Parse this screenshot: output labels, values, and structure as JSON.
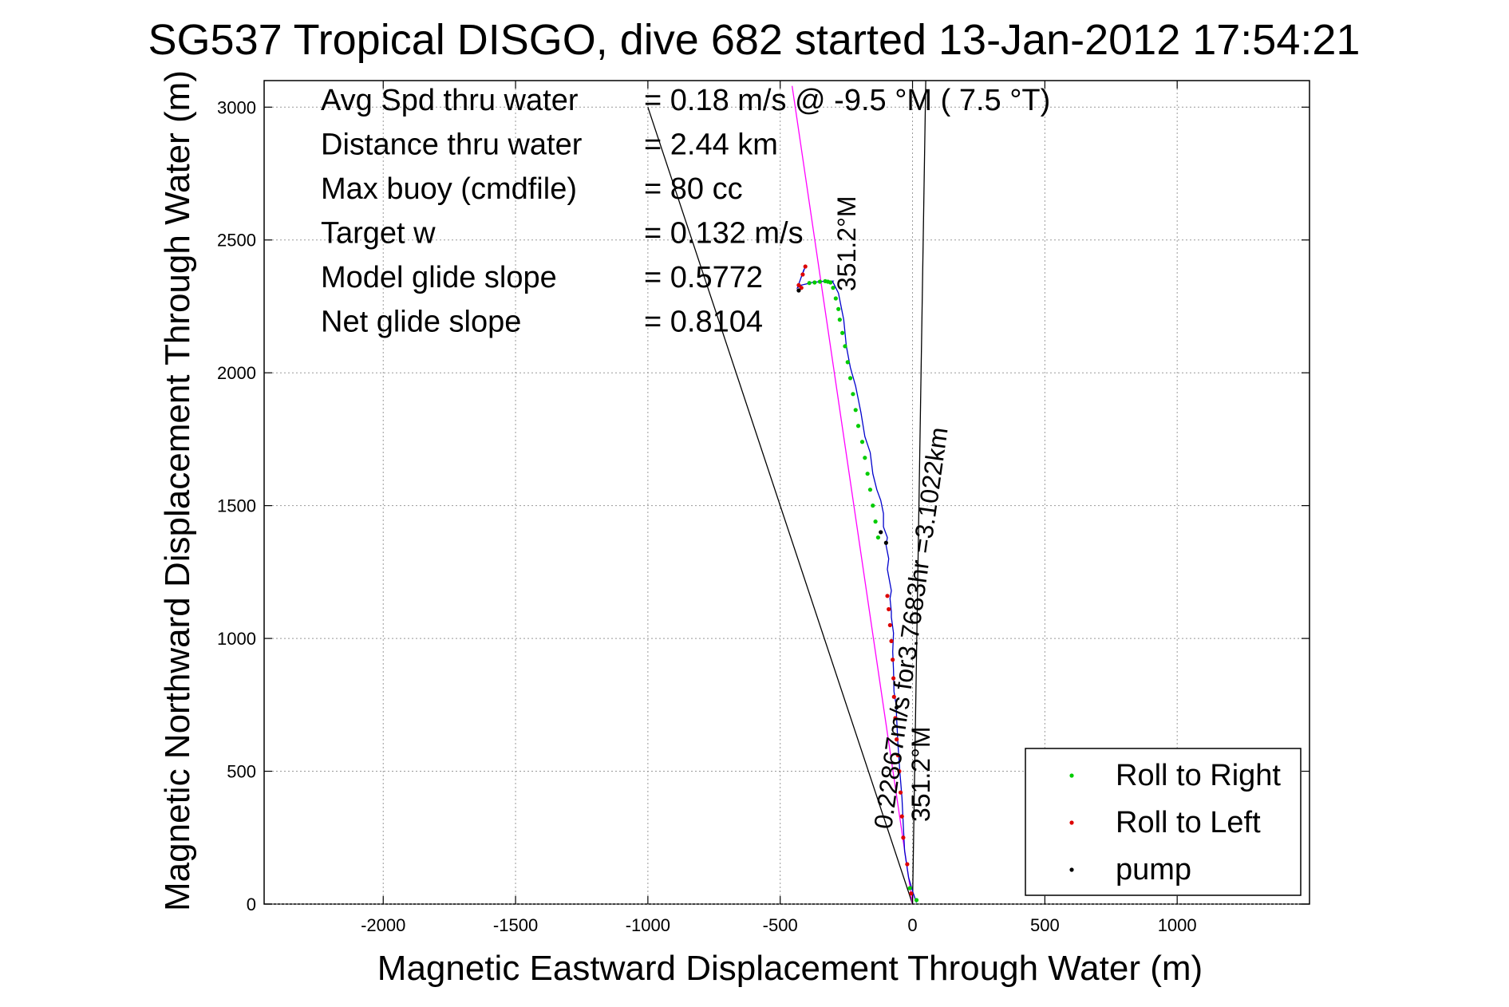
{
  "chart_data": {
    "type": "scatter",
    "title": "SG537 Tropical DISGO, dive 682 started 13-Jan-2012 17:54:21",
    "xlabel": "Magnetic Eastward Displacement Through Water (m)",
    "ylabel": "Magnetic Northward Displacement Through Water (m)",
    "xlim": [
      -2450,
      1500
    ],
    "ylim": [
      0,
      3100
    ],
    "grid": true,
    "x_ticks": [
      -2000,
      -1500,
      -1000,
      -500,
      0,
      500,
      1000
    ],
    "y_ticks": [
      0,
      500,
      1000,
      1500,
      2000,
      2500,
      3000
    ],
    "x_tick_labels": [
      "-2000",
      "-1500",
      "-1000",
      "-500",
      "0",
      "500",
      "1000"
    ],
    "y_tick_labels": [
      "0",
      "500",
      "1000",
      "1500",
      "2000",
      "2500",
      "3000"
    ],
    "stats": [
      {
        "label": "Avg Spd thru water",
        "value": "=  0.18 m/s @  -9.5 °M (  7.5 °T)"
      },
      {
        "label": "Distance thru water",
        "value": "=  2.44 km"
      },
      {
        "label": "Max buoy (cmdfile)",
        "value": "= 80 cc"
      },
      {
        "label": "Target w",
        "value": "= 0.132 m/s"
      },
      {
        "label": "Model glide slope",
        "value": "= 0.5772"
      },
      {
        "label": "Net glide slope",
        "value": "= 0.8104"
      }
    ],
    "annotations": {
      "heading_top": "351.2°M",
      "heading_bottom": "351.2°M",
      "speed_note": "0.22867m/s for3.7683hr =3.1022km"
    },
    "reference_lines": [
      {
        "name": "glide-slope-line-left",
        "color": "#000000",
        "x": [
          0,
          -1000
        ],
        "y": [
          0,
          3000
        ]
      },
      {
        "name": "glide-slope-line-right",
        "color": "#000000",
        "x": [
          0,
          50
        ],
        "y": [
          0,
          3100
        ]
      },
      {
        "name": "heading-line",
        "color": "#ff00ff",
        "x": [
          0,
          -455
        ],
        "y": [
          0,
          3080
        ]
      }
    ],
    "track": {
      "color": "#0000cc",
      "x": [
        15,
        10,
        0,
        -15,
        -30,
        -35,
        -40,
        -48,
        -55,
        -60,
        -62,
        -70,
        -72,
        -75,
        -72,
        -80,
        -80,
        -85,
        -80,
        -95,
        -90,
        -100,
        -95,
        -110,
        -110,
        -120,
        -135,
        -150,
        -160,
        -180,
        -195,
        -215,
        -235,
        -250,
        -260,
        -270,
        -280,
        -290,
        -300,
        -305,
        -300,
        -330,
        -380,
        -400,
        -420,
        -435,
        -410,
        -420,
        -405
      ],
      "y": [
        5,
        20,
        50,
        100,
        200,
        300,
        400,
        500,
        600,
        700,
        750,
        800,
        880,
        950,
        1020,
        1080,
        1100,
        1150,
        1180,
        1260,
        1300,
        1350,
        1380,
        1420,
        1470,
        1520,
        1560,
        1620,
        1700,
        1760,
        1850,
        1950,
        2020,
        2100,
        2200,
        2250,
        2300,
        2320,
        2340,
        2340,
        2345,
        2345,
        2340,
        2335,
        2330,
        2320,
        2390,
        2360,
        2400
      ]
    },
    "series": [
      {
        "name": "Roll to Right",
        "color": "#00cc00",
        "x": [
          15,
          -10,
          -130,
          -140,
          -150,
          -160,
          -170,
          -180,
          -190,
          -205,
          -215,
          -225,
          -235,
          -245,
          -255,
          -265,
          -275,
          -280,
          -290,
          -300,
          -310,
          -320,
          -330,
          -350,
          -370,
          -390
        ],
        "y": [
          15,
          60,
          1380,
          1440,
          1500,
          1560,
          1620,
          1680,
          1740,
          1800,
          1860,
          1920,
          1980,
          2040,
          2100,
          2150,
          2200,
          2240,
          2280,
          2320,
          2340,
          2343,
          2345,
          2343,
          2340,
          2338
        ]
      },
      {
        "name": "Roll to Left",
        "color": "#dd0000",
        "x": [
          -5,
          -20,
          -35,
          -40,
          -45,
          -50,
          -55,
          -60,
          -65,
          -70,
          -72,
          -75,
          -80,
          -85,
          -90,
          -95,
          -420,
          -430,
          -415,
          -405
        ],
        "y": [
          40,
          150,
          250,
          330,
          420,
          500,
          560,
          620,
          700,
          780,
          850,
          920,
          990,
          1050,
          1110,
          1160,
          2320,
          2330,
          2370,
          2400
        ]
      },
      {
        "name": "pump",
        "color": "#000000",
        "x": [
          -60,
          -100,
          -120,
          -430
        ],
        "y": [
          740,
          1360,
          1400,
          2310
        ]
      }
    ],
    "legend": {
      "placement": "bottom-right",
      "entries": [
        "Roll to Right",
        "Roll to Left",
        "pump"
      ]
    }
  }
}
